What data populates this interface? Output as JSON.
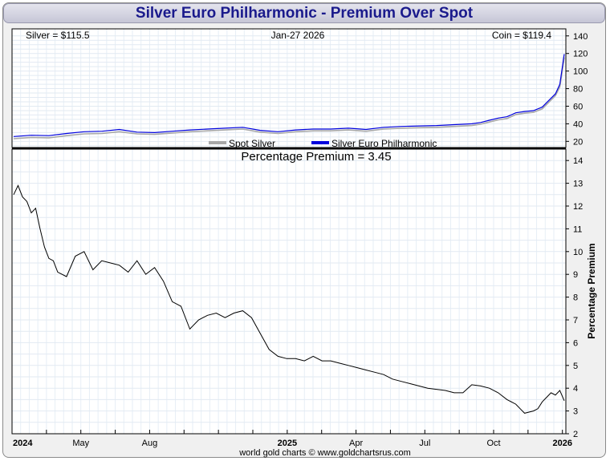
{
  "title": "Silver Euro Philharmonic - Premium Over Spot",
  "footer": "world gold charts © www.goldchartsrus.com",
  "chart_data": [
    {
      "type": "line",
      "name": "price-panel",
      "header_left": "Silver = $115.5",
      "header_center": "Jan-27  2026",
      "header_right": "Coin = $119.4",
      "ylim": [
        13,
        148
      ],
      "yticks": [
        20,
        40,
        60,
        80,
        100,
        120,
        140
      ],
      "legend": [
        "Spot Silver",
        "Silver Euro Philharmonic"
      ],
      "colors": {
        "spot": "#a8a8a8",
        "coin": "#0000dd"
      },
      "x": [
        0,
        4,
        8,
        12,
        16,
        20,
        24,
        28,
        32,
        36,
        40,
        44,
        48,
        52,
        56,
        60,
        64,
        68,
        72,
        76,
        80,
        84,
        88,
        92,
        96,
        100,
        104,
        106,
        108,
        110,
        112,
        114,
        116,
        118,
        120,
        121,
        122,
        123,
        124,
        125
      ],
      "series": [
        {
          "name": "Spot Silver",
          "values": [
            23,
            24.5,
            24,
            26.5,
            28.5,
            29,
            31,
            28.5,
            28,
            29.5,
            31,
            32,
            33,
            34,
            30.5,
            29,
            31,
            32,
            32,
            33,
            31.5,
            34,
            35,
            35.5,
            36,
            37,
            38,
            39.5,
            42,
            44.5,
            46,
            50.5,
            52,
            53,
            57,
            62,
            67,
            72,
            82,
            115.5
          ]
        },
        {
          "name": "Silver Euro Philharmonic",
          "values": [
            25.5,
            27,
            26.5,
            29,
            31,
            31.5,
            33.5,
            30.5,
            30,
            31.5,
            33,
            34,
            35,
            36,
            32.5,
            31,
            33,
            34,
            34,
            35,
            33.5,
            36,
            37,
            37.5,
            38,
            39,
            40,
            41.5,
            44,
            46.5,
            48,
            52.5,
            54,
            55,
            59,
            64,
            69,
            74,
            85,
            119.4
          ]
        }
      ]
    },
    {
      "type": "line",
      "name": "premium-panel",
      "title": "Percentage Premium = 3.45",
      "ylabel": "Percentage Premium",
      "ylim": [
        2,
        14.5
      ],
      "yticks": [
        2,
        3,
        4,
        5,
        6,
        7,
        8,
        9,
        10,
        11,
        12,
        13,
        14
      ],
      "x": [
        0,
        1,
        2,
        3,
        4,
        5,
        6,
        7,
        8,
        9,
        10,
        12,
        14,
        16,
        18,
        20,
        22,
        24,
        26,
        28,
        30,
        32,
        34,
        36,
        38,
        40,
        42,
        44,
        46,
        48,
        50,
        52,
        54,
        56,
        58,
        60,
        62,
        64,
        66,
        68,
        70,
        72,
        74,
        76,
        78,
        80,
        82,
        84,
        86,
        88,
        90,
        92,
        94,
        96,
        98,
        100,
        102,
        104,
        106,
        108,
        110,
        112,
        114,
        115,
        116,
        117,
        118,
        119,
        120,
        121,
        122,
        123,
        124,
        125
      ],
      "values": [
        12.5,
        12.9,
        12.4,
        12.2,
        11.7,
        11.9,
        11.0,
        10.2,
        9.7,
        9.6,
        9.1,
        8.9,
        9.8,
        10.0,
        9.2,
        9.6,
        9.5,
        9.4,
        9.1,
        9.6,
        9.0,
        9.3,
        8.7,
        7.8,
        7.6,
        6.6,
        7.0,
        7.2,
        7.3,
        7.1,
        7.3,
        7.4,
        7.1,
        6.4,
        5.7,
        5.4,
        5.3,
        5.3,
        5.2,
        5.4,
        5.2,
        5.2,
        5.1,
        5.0,
        4.9,
        4.8,
        4.7,
        4.6,
        4.4,
        4.3,
        4.2,
        4.1,
        4.0,
        3.95,
        3.9,
        3.8,
        3.8,
        4.15,
        4.1,
        4.0,
        3.8,
        3.5,
        3.3,
        3.1,
        2.9,
        2.95,
        3.0,
        3.1,
        3.4,
        3.6,
        3.8,
        3.7,
        3.9,
        3.45
      ]
    }
  ],
  "x_axis": {
    "ticks": [
      {
        "x": 0,
        "label": "2024",
        "bold": true
      },
      {
        "x": 10,
        "label": "",
        "bold": false
      },
      {
        "x": 20,
        "label": "May",
        "bold": false
      },
      {
        "x": 30,
        "label": "",
        "bold": false
      },
      {
        "x": 40,
        "label": "Aug",
        "bold": false
      },
      {
        "x": 50,
        "label": "",
        "bold": false
      },
      {
        "x": 60,
        "label": "",
        "bold": false
      },
      {
        "x": 70,
        "label": "",
        "bold": false
      },
      {
        "x": 80,
        "label": "2025",
        "bold": true
      },
      {
        "x": 90,
        "label": "",
        "bold": false
      },
      {
        "x": 100,
        "label": "Apr",
        "bold": false
      },
      {
        "x": 110,
        "label": "",
        "bold": false
      },
      {
        "x": 120,
        "label": "Jul",
        "bold": false
      },
      {
        "x": 130,
        "label": "",
        "bold": false
      },
      {
        "x": 140,
        "label": "Oct",
        "bold": false
      },
      {
        "x": 150,
        "label": "",
        "bold": false
      },
      {
        "x": 160,
        "label": "2026",
        "bold": true
      }
    ],
    "range": [
      0,
      161
    ]
  }
}
